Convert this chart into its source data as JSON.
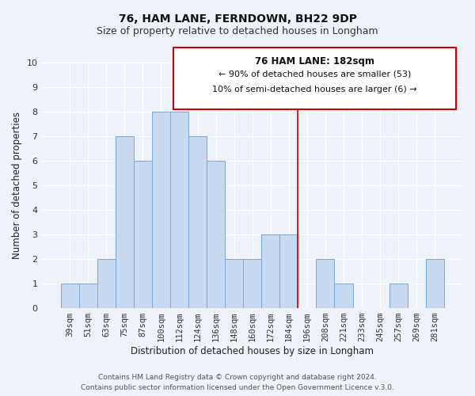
{
  "title": "76, HAM LANE, FERNDOWN, BH22 9DP",
  "subtitle": "Size of property relative to detached houses in Longham",
  "xlabel": "Distribution of detached houses by size in Longham",
  "ylabel": "Number of detached properties",
  "bar_labels": [
    "39sqm",
    "51sqm",
    "63sqm",
    "75sqm",
    "87sqm",
    "100sqm",
    "112sqm",
    "124sqm",
    "136sqm",
    "148sqm",
    "160sqm",
    "172sqm",
    "184sqm",
    "196sqm",
    "208sqm",
    "221sqm",
    "233sqm",
    "245sqm",
    "257sqm",
    "269sqm",
    "281sqm"
  ],
  "bar_values": [
    1,
    1,
    2,
    7,
    6,
    8,
    8,
    7,
    6,
    2,
    2,
    3,
    3,
    0,
    2,
    1,
    0,
    0,
    1,
    0,
    2
  ],
  "bar_color": "#c8d8ee",
  "bar_edgecolor": "#7ca8d5",
  "ylim": [
    0,
    10
  ],
  "yticks": [
    0,
    1,
    2,
    3,
    4,
    5,
    6,
    7,
    8,
    9,
    10
  ],
  "vline_idx": 12.5,
  "vline_color": "#cc0000",
  "annotation_title": "76 HAM LANE: 182sqm",
  "annotation_line1": "← 90% of detached houses are smaller (53)",
  "annotation_line2": "10% of semi-detached houses are larger (6) →",
  "footer_line1": "Contains HM Land Registry data © Crown copyright and database right 2024.",
  "footer_line2": "Contains public sector information licensed under the Open Government Licence v.3.0.",
  "bg_color": "#eef2fa",
  "plot_bg_color": "#eef2fa",
  "grid_color": "#ffffff",
  "title_fontsize": 10,
  "subtitle_fontsize": 9,
  "axis_label_fontsize": 8.5,
  "tick_fontsize": 7.5,
  "footer_fontsize": 6.5
}
